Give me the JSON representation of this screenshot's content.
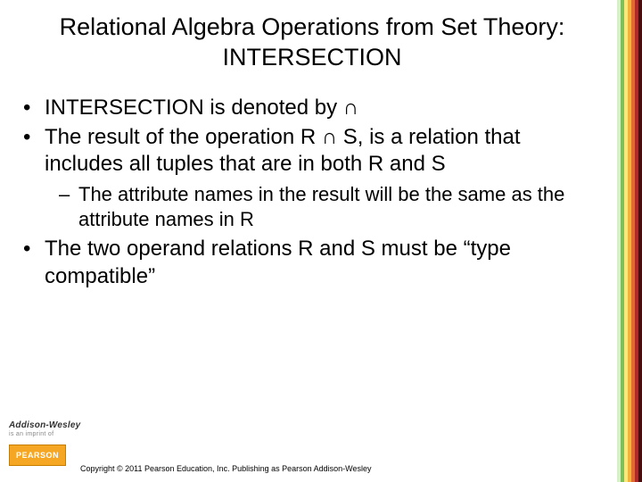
{
  "title": "Relational Algebra Operations from Set Theory: INTERSECTION",
  "bullets": {
    "b1": "INTERSECTION is denoted by ∩",
    "b2": "The result of the operation R ∩ S, is a relation that includes all tuples that are in both R and S",
    "b2_sub": "The attribute names in the result will be the same as the attribute names in R",
    "b3": "The two operand relations R and S must be “type compatible”"
  },
  "footer": {
    "imprint_line1": "Addison-Wesley",
    "imprint_line2": "is an imprint of",
    "pearson_label": "PEARSON",
    "copyright": "Copyright © 2011 Pearson Education, Inc. Publishing as Pearson Addison-Wesley"
  },
  "stripes": {
    "colors": [
      "#d6f0c8",
      "#7fbf5a",
      "#f7e97a",
      "#f2b43a",
      "#e36a2e",
      "#b02a2a",
      "#4a0d0d"
    ],
    "widths": [
      4,
      4,
      4,
      4,
      4,
      4,
      4
    ]
  }
}
